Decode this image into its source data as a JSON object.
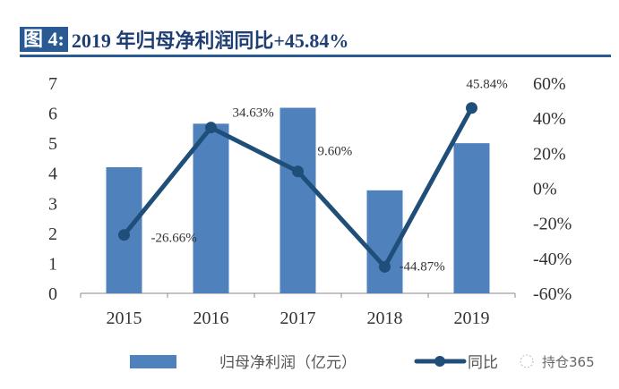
{
  "header": {
    "label": "图 4:",
    "title": "2019 年归母净利润同比+45.84%"
  },
  "chart_data": {
    "type": "bar+line",
    "categories": [
      "2015",
      "2016",
      "2017",
      "2018",
      "2019"
    ],
    "series": [
      {
        "name": "归母净利润（亿元）",
        "type": "bar",
        "axis": "left",
        "values": [
          4.2,
          5.65,
          6.18,
          3.43,
          5.0
        ],
        "color": "#4f81bd"
      },
      {
        "name": "同比",
        "type": "line",
        "axis": "right",
        "values": [
          -26.66,
          34.63,
          9.6,
          -44.87,
          45.84
        ],
        "labels": [
          "-26.66%",
          "34.63%",
          "9.60%",
          "-44.87%",
          "45.84%"
        ],
        "color": "#1f4e79"
      }
    ],
    "left_axis": {
      "ylim": [
        0,
        7
      ],
      "ticks": [
        "0",
        "1",
        "2",
        "3",
        "4",
        "5",
        "6",
        "7"
      ]
    },
    "right_axis": {
      "ylim": [
        -60,
        60
      ],
      "ticks": [
        "-60%",
        "-40%",
        "-20%",
        "0%",
        "20%",
        "40%",
        "60%"
      ]
    },
    "legend": "bottom"
  },
  "watermark": "持仓365"
}
